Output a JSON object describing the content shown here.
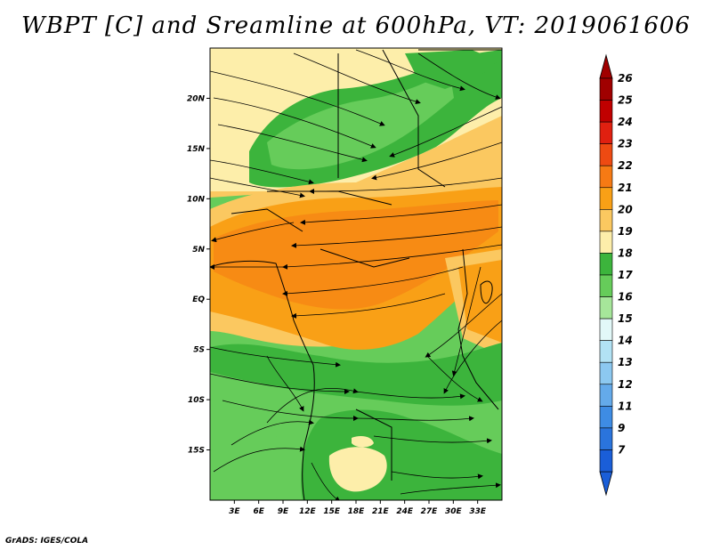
{
  "title": "WBPT [C] and Sreamline at 600hPa, VT: 2019061606",
  "credit": "GrADS: IGES/COLA",
  "map": {
    "lon_range": [
      0,
      36
    ],
    "lat_range": [
      -20,
      25
    ],
    "lon_ticks": [
      {
        "value": 3,
        "label": "3E"
      },
      {
        "value": 6,
        "label": "6E"
      },
      {
        "value": 9,
        "label": "9E"
      },
      {
        "value": 12,
        "label": "12E"
      },
      {
        "value": 15,
        "label": "15E"
      },
      {
        "value": 18,
        "label": "18E"
      },
      {
        "value": 21,
        "label": "21E"
      },
      {
        "value": 24,
        "label": "24E"
      },
      {
        "value": 27,
        "label": "27E"
      },
      {
        "value": 30,
        "label": "30E"
      },
      {
        "value": 33,
        "label": "33E"
      }
    ],
    "lat_ticks": [
      {
        "value": 20,
        "label": "20N"
      },
      {
        "value": 15,
        "label": "15N"
      },
      {
        "value": 10,
        "label": "10N"
      },
      {
        "value": 5,
        "label": "5N"
      },
      {
        "value": 0,
        "label": "EQ"
      },
      {
        "value": -5,
        "label": "5S"
      },
      {
        "value": -10,
        "label": "10S"
      },
      {
        "value": -15,
        "label": "15S"
      }
    ]
  },
  "colorbar": {
    "levels": [
      {
        "label": "26",
        "color": "#a00000"
      },
      {
        "label": "25",
        "color": "#c00000"
      },
      {
        "label": "24",
        "color": "#e02010"
      },
      {
        "label": "23",
        "color": "#ee4a12"
      },
      {
        "label": "22",
        "color": "#f67a14"
      },
      {
        "label": "21",
        "color": "#f9a016"
      },
      {
        "label": "20",
        "color": "#fbc860"
      },
      {
        "label": "19",
        "color": "#fdeeaa"
      },
      {
        "label": "18",
        "color": "#3cb43c"
      },
      {
        "label": "17",
        "color": "#66cc5a"
      },
      {
        "label": "16",
        "color": "#a6e69a"
      },
      {
        "label": "15",
        "color": "#e2f8f8"
      },
      {
        "label": "14",
        "color": "#b2e2f4"
      },
      {
        "label": "13",
        "color": "#8cc8f0"
      },
      {
        "label": "12",
        "color": "#64aaea"
      },
      {
        "label": "11",
        "color": "#3e8ce4"
      },
      {
        "label": "9",
        "color": "#2a74dc"
      },
      {
        "label": "7",
        "color": "#1a5ed8"
      }
    ],
    "top_arrow_color": "#a00000",
    "bottom_arrow_color": "#1a5ed8"
  }
}
